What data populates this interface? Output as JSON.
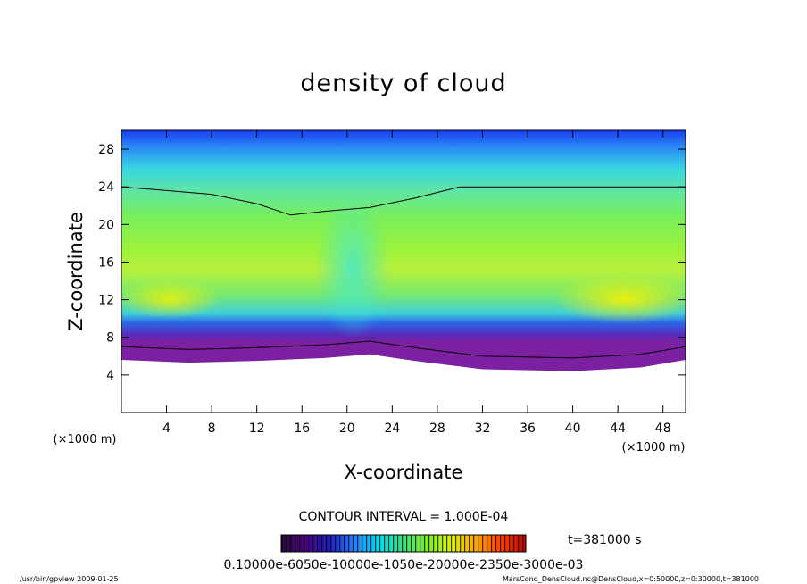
{
  "chart_data": {
    "type": "heatmap",
    "title": "density of cloud",
    "xlabel": "X-coordinate",
    "ylabel": "Z-coordinate",
    "x_unit": "(×1000 m)",
    "y_unit": "(×1000 m)",
    "xlim": [
      0,
      50
    ],
    "ylim": [
      0,
      30
    ],
    "x_ticks": [
      4,
      8,
      12,
      16,
      20,
      24,
      28,
      32,
      36,
      40,
      44,
      48
    ],
    "y_ticks": [
      4,
      8,
      12,
      16,
      20,
      24,
      28
    ],
    "contour_interval": "CONTOUR INTERVAL = 1.000E-04",
    "time_label": "t=381000 s",
    "colorbar_labels": "0.10000e-6050e-10000e-1050e-20000e-2350e-3000e-03",
    "colorbar_colors": [
      "#2a0a3a",
      "#4b0082",
      "#2020c0",
      "#2080ff",
      "#00e0f0",
      "#40e080",
      "#80f020",
      "#e0f000",
      "#ffa000",
      "#ff4000",
      "#c00000"
    ],
    "contour_outline": [
      [
        0,
        24.0
      ],
      [
        4,
        23.6
      ],
      [
        8,
        23.2
      ],
      [
        12,
        22.2
      ],
      [
        15,
        21.0
      ],
      [
        18,
        21.4
      ],
      [
        22,
        21.8
      ],
      [
        26,
        22.8
      ],
      [
        30,
        24.0
      ],
      [
        40,
        24.0
      ],
      [
        50,
        24.0
      ]
    ],
    "cloud_base": [
      [
        0,
        5.6
      ],
      [
        6,
        5.3
      ],
      [
        12,
        5.5
      ],
      [
        18,
        5.8
      ],
      [
        22,
        6.2
      ],
      [
        26,
        5.5
      ],
      [
        32,
        4.6
      ],
      [
        40,
        4.4
      ],
      [
        46,
        4.8
      ],
      [
        50,
        5.6
      ]
    ]
  },
  "footer": {
    "left": "/usr/bin/gpview   2009-01-25",
    "right": "MarsCond_DensCloud.nc@DensCloud,x=0:50000,z=0:30000,t=381000"
  }
}
